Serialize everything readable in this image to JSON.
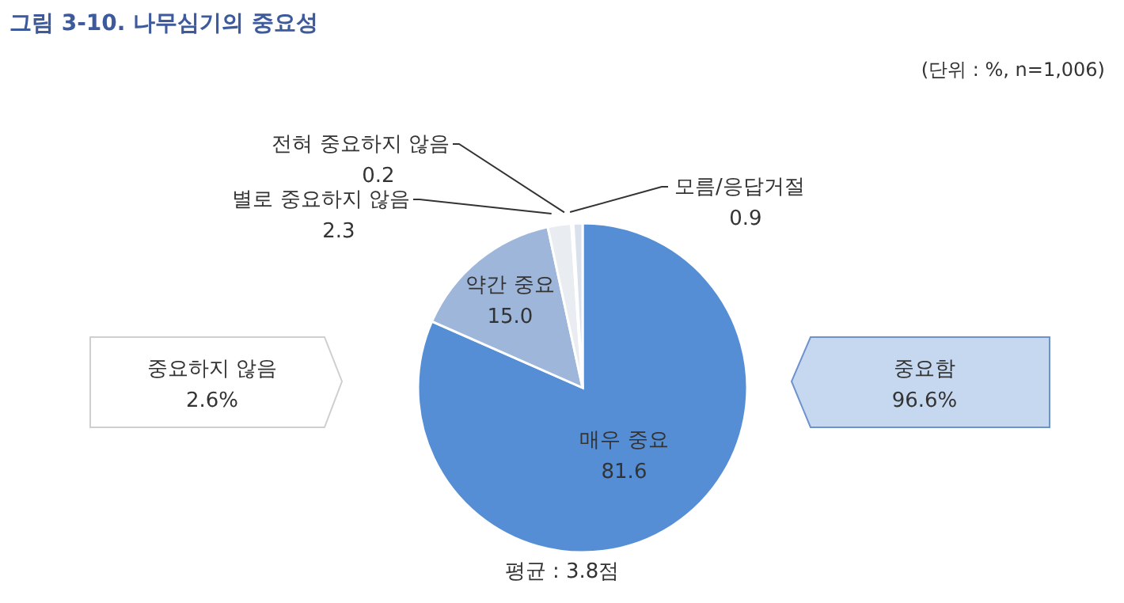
{
  "chart_data": {
    "type": "pie",
    "title": "그림 3-10. 나무심기의 중요성",
    "categories": [
      "매우 중요",
      "약간 중요",
      "별로 중요하지 않음",
      "전혀 중요하지 않음",
      "모름/응답거절"
    ],
    "values": [
      81.6,
      15.0,
      2.3,
      0.2,
      0.9
    ],
    "colors": [
      "#558ed5",
      "#9db6da",
      "#e9edf2",
      "#f5f5f5",
      "#d9e1ec"
    ],
    "value_labels": [
      "81.6",
      "15.0",
      "2.3",
      "0.2",
      "0.9"
    ],
    "annotations": [
      "(단위 : %, n=1,006)",
      "중요하지 않음 2.6%",
      "중요함 96.6%",
      "평균 : 3.8점"
    ]
  }
}
